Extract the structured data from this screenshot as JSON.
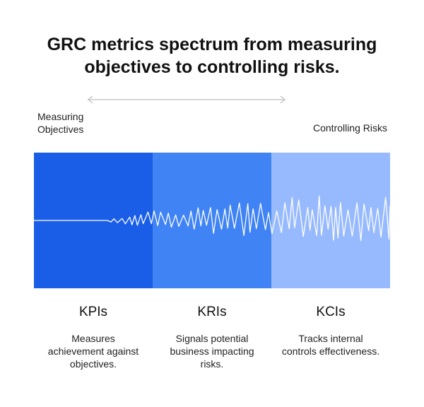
{
  "title": {
    "line1": "GRC metrics spectrum from measuring",
    "line2": "objectives to controlling risks."
  },
  "spectrum": {
    "left_label_line1": "Measuring",
    "left_label_line2": "Objectives",
    "right_label": "Controlling Risks"
  },
  "colors": {
    "kpi": "#1a5ee8",
    "kri": "#3f83f4",
    "kci": "#97baff",
    "wave": "#ffffff",
    "arrow": "#bfbfbf"
  },
  "columns": [
    {
      "heading": "KPIs",
      "description": "Measures achievement against objectives."
    },
    {
      "heading": "KRIs",
      "description": "Signals potential business impacting risks."
    },
    {
      "heading": "KCIs",
      "description": "Tracks internal controls effectiveness."
    }
  ]
}
